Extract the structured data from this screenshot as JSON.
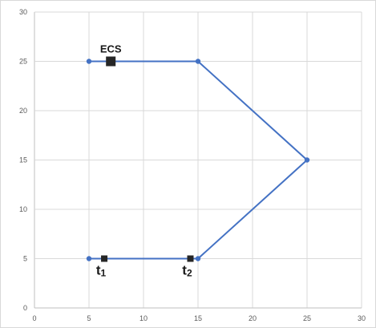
{
  "chart_data": {
    "type": "scatter",
    "title": "",
    "xlabel": "",
    "ylabel": "",
    "xlim": [
      0,
      30
    ],
    "ylim": [
      0,
      30
    ],
    "x_ticks": [
      0,
      5,
      10,
      15,
      20,
      25,
      30
    ],
    "y_ticks": [
      0,
      5,
      10,
      15,
      20,
      25,
      30
    ],
    "grid": true,
    "legend": "none",
    "series": [
      {
        "mode": "lines+markers",
        "color": "#4472c4",
        "points": [
          {
            "x": 5,
            "y": 25
          },
          {
            "x": 15,
            "y": 25
          },
          {
            "x": 25,
            "y": 15
          },
          {
            "x": 15,
            "y": 5
          },
          {
            "x": 5,
            "y": 5
          }
        ]
      }
    ],
    "annotations": [
      {
        "marker": "square",
        "marker_size": "large",
        "x": 7,
        "y": 25,
        "text": "ECS",
        "label_position": "above"
      },
      {
        "marker": "square",
        "marker_size": "small",
        "x": 6.4,
        "y": 5,
        "text": "t",
        "subscript": "1",
        "label_position": "below"
      },
      {
        "marker": "square",
        "marker_size": "small",
        "x": 14.3,
        "y": 5,
        "text": "t",
        "subscript": "2",
        "label_position": "below"
      }
    ],
    "colors": {
      "series": "#4472c4",
      "grid": "#d9d9d9",
      "axis": "#bfbfbf",
      "marker": "#262626",
      "tick_text": "#595959"
    }
  }
}
